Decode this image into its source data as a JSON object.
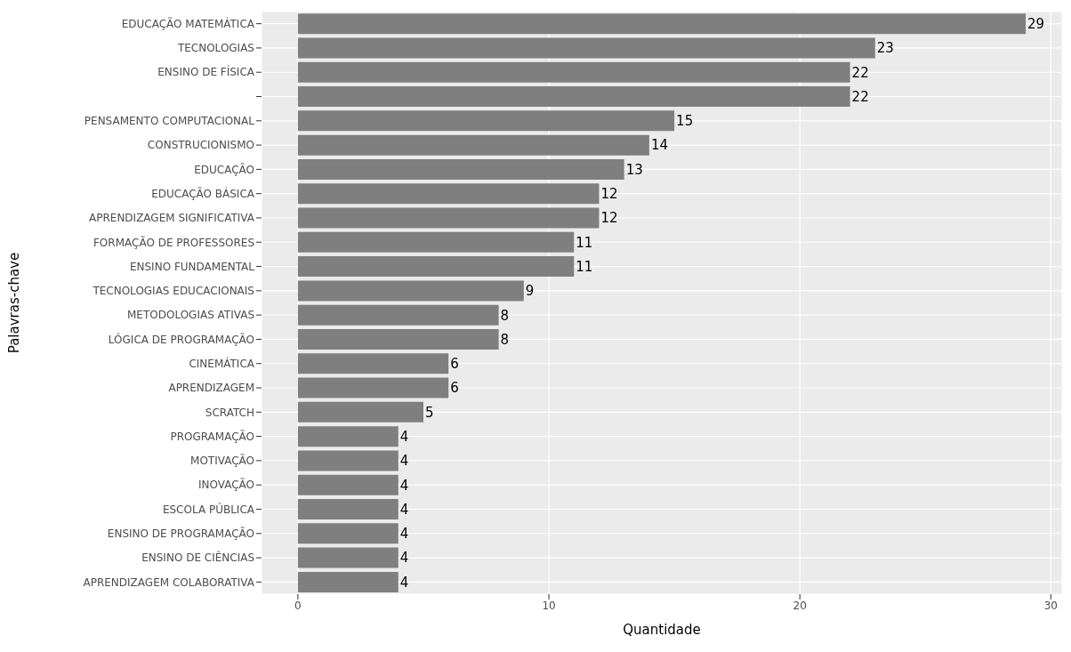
{
  "chart_data": {
    "type": "bar",
    "orientation": "horizontal",
    "xlabel": "Quantidade",
    "ylabel": "Palavras-chave",
    "categories": [
      "EDUCAÇÃO MATEMÁTICA",
      "TECNOLOGIAS",
      "ENSINO DE FÍSICA",
      null,
      "PENSAMENTO COMPUTACIONAL",
      "CONSTRUCIONISMO",
      "EDUCAÇÃO",
      "EDUCAÇÃO BÁSICA",
      "APRENDIZAGEM SIGNIFICATIVA",
      "FORMAÇÃO DE PROFESSORES",
      "ENSINO FUNDAMENTAL",
      "TECNOLOGIAS EDUCACIONAIS",
      "METODOLOGIAS ATIVAS",
      "LÓGICA DE PROGRAMAÇÃO",
      "CINEMÁTICA",
      "APRENDIZAGEM",
      "SCRATCH",
      "PROGRAMAÇÃO",
      "MOTIVAÇÃO",
      "INOVAÇÃO",
      "ESCOLA PÚBLICA",
      "ENSINO DE PROGRAMAÇÃO",
      "ENSINO DE CIÊNCIAS",
      "APRENDIZAGEM COLABORATIVA"
    ],
    "values": [
      29,
      23,
      22,
      22,
      15,
      14,
      13,
      12,
      12,
      11,
      11,
      9,
      8,
      8,
      6,
      6,
      5,
      4,
      4,
      4,
      4,
      4,
      4,
      4
    ],
    "color": "#7f7f7f",
    "data_labels": true,
    "xlim": [
      -1.45,
      30.45
    ],
    "xticks": [
      0,
      10,
      20,
      30
    ],
    "grid": true
  }
}
